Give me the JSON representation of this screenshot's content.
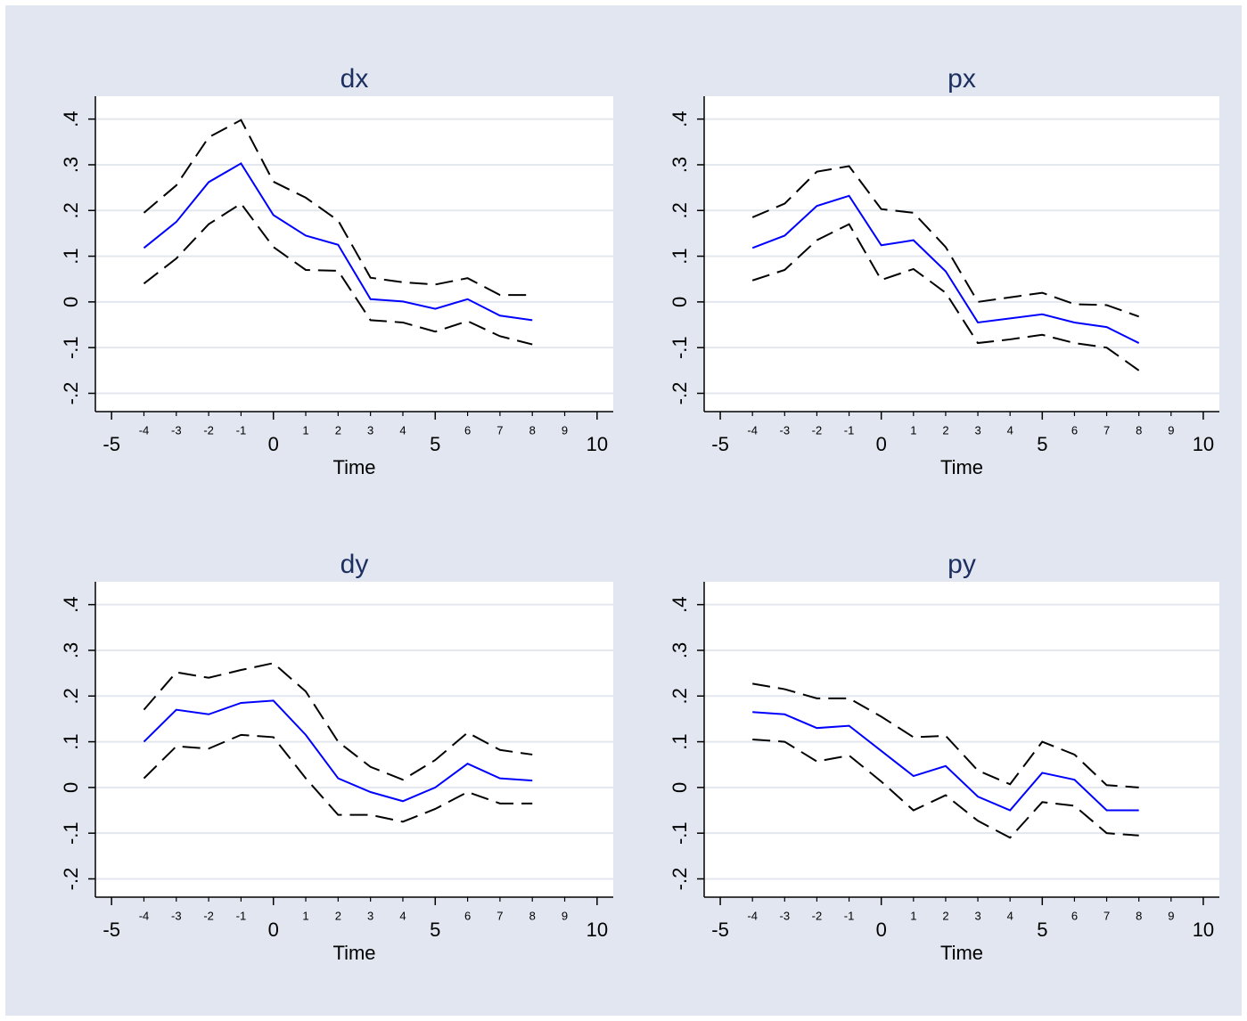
{
  "chart_data": [
    {
      "type": "line",
      "title": "dx",
      "xlabel": "Time",
      "x": [
        -4,
        -3,
        -2,
        -1,
        0,
        1,
        2,
        3,
        4,
        5,
        6,
        7,
        8
      ],
      "series": [
        {
          "color": "#0000ff",
          "dashed": false,
          "values": [
            0.118,
            0.175,
            0.262,
            0.303,
            0.19,
            0.145,
            0.125,
            0.006,
            0.001,
            -0.015,
            0.006,
            -0.03,
            -0.04
          ]
        },
        {
          "color": "#000000",
          "dashed": true,
          "values": [
            0.195,
            0.255,
            0.36,
            0.398,
            0.263,
            0.228,
            0.178,
            0.053,
            0.043,
            0.038,
            0.052,
            0.015,
            0.015
          ]
        },
        {
          "color": "#000000",
          "dashed": true,
          "values": [
            0.04,
            0.095,
            0.17,
            0.215,
            0.12,
            0.07,
            0.068,
            -0.04,
            -0.045,
            -0.065,
            -0.042,
            -0.075,
            -0.093
          ]
        }
      ],
      "xlim": [
        -5.5,
        10.5
      ],
      "ylim": [
        -0.24,
        0.45
      ],
      "xticks": [
        -5,
        0,
        5,
        10
      ],
      "xminorticks": [
        -4,
        -3,
        -2,
        -1,
        1,
        2,
        3,
        4,
        6,
        7,
        8,
        9
      ],
      "yticks": [
        {
          "value": -0.2,
          "label": "-.2"
        },
        {
          "value": -0.1,
          "label": "-.1"
        },
        0,
        {
          "value": 0.1,
          "label": ".1"
        },
        {
          "value": 0.2,
          "label": ".2"
        },
        {
          "value": 0.3,
          "label": ".3"
        },
        {
          "value": 0.4,
          "label": ".4"
        }
      ],
      "grid": true
    },
    {
      "type": "line",
      "title": "px",
      "xlabel": "Time",
      "x": [
        -4,
        -3,
        -2,
        -1,
        0,
        1,
        2,
        3,
        4,
        5,
        6,
        7,
        8
      ],
      "series": [
        {
          "color": "#0000ff",
          "dashed": false,
          "values": [
            0.118,
            0.145,
            0.21,
            0.232,
            0.124,
            0.135,
            0.067,
            -0.045,
            -0.036,
            -0.027,
            -0.045,
            -0.055,
            -0.09
          ]
        },
        {
          "color": "#000000",
          "dashed": true,
          "values": [
            0.185,
            0.215,
            0.285,
            0.297,
            0.203,
            0.195,
            0.12,
            0.0,
            0.01,
            0.02,
            -0.005,
            -0.007,
            -0.032
          ]
        },
        {
          "color": "#000000",
          "dashed": true,
          "values": [
            0.047,
            0.07,
            0.135,
            0.17,
            0.048,
            0.072,
            0.02,
            -0.09,
            -0.082,
            -0.072,
            -0.09,
            -0.1,
            -0.15
          ]
        }
      ],
      "xlim": [
        -5.5,
        10.5
      ],
      "ylim": [
        -0.24,
        0.45
      ],
      "xticks": [
        -5,
        0,
        5,
        10
      ],
      "xminorticks": [
        -4,
        -3,
        -2,
        -1,
        1,
        2,
        3,
        4,
        6,
        7,
        8,
        9
      ],
      "yticks": [
        {
          "value": -0.2,
          "label": "-.2"
        },
        {
          "value": -0.1,
          "label": "-.1"
        },
        0,
        {
          "value": 0.1,
          "label": ".1"
        },
        {
          "value": 0.2,
          "label": ".2"
        },
        {
          "value": 0.3,
          "label": ".3"
        },
        {
          "value": 0.4,
          "label": ".4"
        }
      ],
      "grid": true
    },
    {
      "type": "line",
      "title": "dy",
      "xlabel": "Time",
      "x": [
        -4,
        -3,
        -2,
        -1,
        0,
        1,
        2,
        3,
        4,
        5,
        6,
        7,
        8
      ],
      "series": [
        {
          "color": "#0000ff",
          "dashed": false,
          "values": [
            0.1,
            0.17,
            0.16,
            0.185,
            0.19,
            0.115,
            0.02,
            -0.01,
            -0.03,
            0,
            0.052,
            0.02,
            0.015
          ]
        },
        {
          "color": "#000000",
          "dashed": true,
          "values": [
            0.17,
            0.252,
            0.24,
            0.257,
            0.272,
            0.21,
            0.1,
            0.045,
            0.017,
            0.06,
            0.12,
            0.082,
            0.072
          ]
        },
        {
          "color": "#000000",
          "dashed": true,
          "values": [
            0.02,
            0.09,
            0.085,
            0.115,
            0.11,
            0.02,
            -0.06,
            -0.06,
            -0.075,
            -0.047,
            -0.01,
            -0.035,
            -0.035
          ]
        }
      ],
      "xlim": [
        -5.5,
        10.5
      ],
      "ylim": [
        -0.24,
        0.45
      ],
      "xticks": [
        -5,
        0,
        5,
        10
      ],
      "xminorticks": [
        -4,
        -3,
        -2,
        -1,
        1,
        2,
        3,
        4,
        6,
        7,
        8,
        9
      ],
      "yticks": [
        {
          "value": -0.2,
          "label": "-.2"
        },
        {
          "value": -0.1,
          "label": "-.1"
        },
        0,
        {
          "value": 0.1,
          "label": ".1"
        },
        {
          "value": 0.2,
          "label": ".2"
        },
        {
          "value": 0.3,
          "label": ".3"
        },
        {
          "value": 0.4,
          "label": ".4"
        }
      ],
      "grid": true
    },
    {
      "type": "line",
      "title": "py",
      "xlabel": "Time",
      "x": [
        -4,
        -3,
        -2,
        -1,
        0,
        1,
        2,
        3,
        4,
        5,
        6,
        7,
        8
      ],
      "series": [
        {
          "color": "#0000ff",
          "dashed": false,
          "values": [
            0.165,
            0.16,
            0.13,
            0.135,
            0.08,
            0.025,
            0.047,
            -0.02,
            -0.05,
            0.032,
            0.017,
            -0.05,
            -0.05
          ]
        },
        {
          "color": "#000000",
          "dashed": true,
          "values": [
            0.227,
            0.215,
            0.195,
            0.195,
            0.155,
            0.11,
            0.113,
            0.037,
            0.007,
            0.1,
            0.072,
            0.005,
            0
          ]
        },
        {
          "color": "#000000",
          "dashed": true,
          "values": [
            0.105,
            0.1,
            0.057,
            0.07,
            0.013,
            -0.05,
            -0.017,
            -0.073,
            -0.11,
            -0.032,
            -0.04,
            -0.1,
            -0.105
          ]
        }
      ],
      "xlim": [
        -5.5,
        10.5
      ],
      "ylim": [
        -0.24,
        0.45
      ],
      "xticks": [
        -5,
        0,
        5,
        10
      ],
      "xminorticks": [
        -4,
        -3,
        -2,
        -1,
        1,
        2,
        3,
        4,
        6,
        7,
        8,
        9
      ],
      "yticks": [
        {
          "value": -0.2,
          "label": "-.2"
        },
        {
          "value": -0.1,
          "label": "-.1"
        },
        0,
        {
          "value": 0.1,
          "label": ".1"
        },
        {
          "value": 0.2,
          "label": ".2"
        },
        {
          "value": 0.3,
          "label": ".3"
        },
        {
          "value": 0.4,
          "label": ".4"
        }
      ],
      "grid": true
    }
  ]
}
